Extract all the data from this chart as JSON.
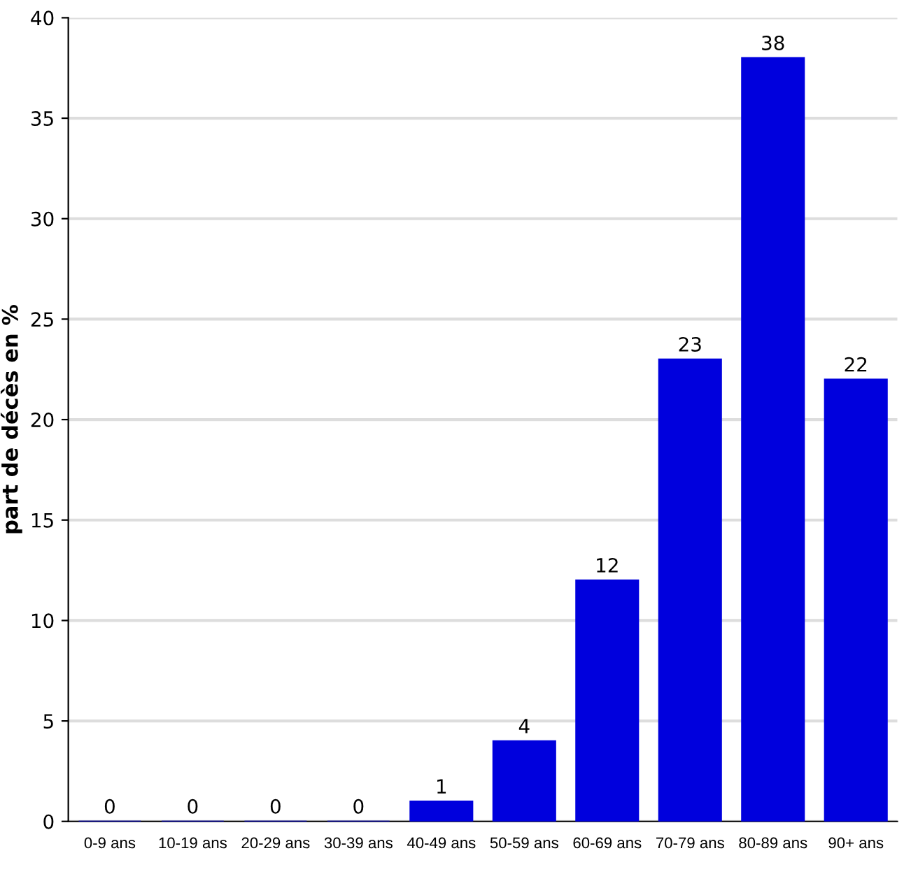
{
  "chart_data": {
    "type": "bar",
    "ylabel": "part de décès en %",
    "categories": [
      "0-9 ans",
      "10-19 ans",
      "20-29 ans",
      "30-39 ans",
      "40-49 ans",
      "50-59 ans",
      "60-69 ans",
      "70-79 ans",
      "80-89 ans",
      "90+ ans"
    ],
    "values": [
      0,
      0,
      0,
      0,
      1,
      4,
      12,
      23,
      38,
      22
    ],
    "color": "#0000dd",
    "ylim": [
      0,
      40
    ],
    "yticks": [
      0,
      5,
      10,
      15,
      20,
      25,
      30,
      35,
      40
    ],
    "grid": "y",
    "data_labels": true
  }
}
